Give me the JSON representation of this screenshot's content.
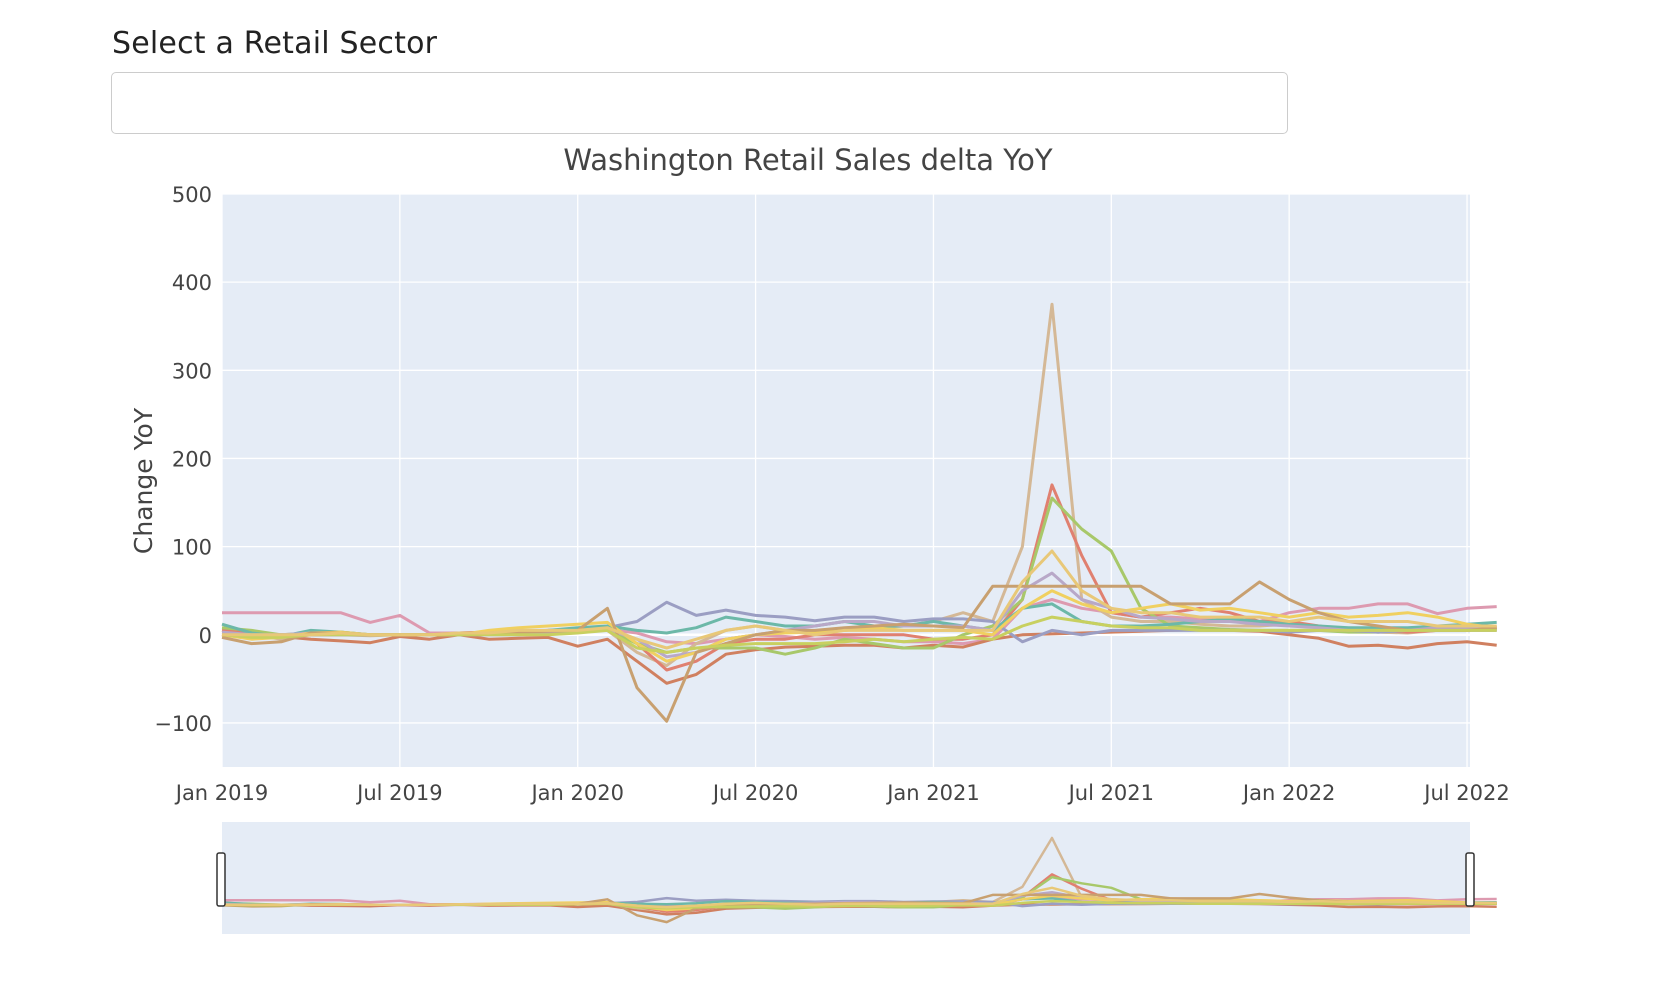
{
  "dropdown": {
    "label": "Select a Retail Sector",
    "value": ""
  },
  "chart_data": {
    "type": "line",
    "title": "Washington Retail Sales delta YoY",
    "ylabel": "Change YoY",
    "xlabel": "",
    "ylim": [
      -150,
      500
    ],
    "xlim": [
      "2019-01",
      "2022-08"
    ],
    "grid": true,
    "range_slider": true,
    "x_ticks": [
      "Jan 2019",
      "Jul 2019",
      "Jan 2020",
      "Jul 2020",
      "Jan 2021",
      "Jul 2021",
      "Jan 2022",
      "Jul 2022"
    ],
    "y_ticks": [
      -100,
      0,
      100,
      200,
      300,
      400,
      500
    ],
    "x": [
      "2019-01",
      "2019-02",
      "2019-03",
      "2019-04",
      "2019-05",
      "2019-06",
      "2019-07",
      "2019-08",
      "2019-09",
      "2019-10",
      "2019-11",
      "2019-12",
      "2020-01",
      "2020-02",
      "2020-03",
      "2020-04",
      "2020-05",
      "2020-06",
      "2020-07",
      "2020-08",
      "2020-09",
      "2020-10",
      "2020-11",
      "2020-12",
      "2021-01",
      "2021-02",
      "2021-03",
      "2021-04",
      "2021-05",
      "2021-06",
      "2021-07",
      "2021-08",
      "2021-09",
      "2021-10",
      "2021-11",
      "2021-12",
      "2022-01",
      "2022-02",
      "2022-03",
      "2022-04",
      "2022-05",
      "2022-06",
      "2022-07",
      "2022-08"
    ],
    "series": [
      {
        "color": "#dd9ab0",
        "values": [
          25,
          25,
          25,
          25,
          25,
          14,
          22,
          2,
          2,
          3,
          4,
          4,
          4,
          6,
          2,
          -8,
          -10,
          -5,
          0,
          -2,
          -5,
          -3,
          -5,
          -8,
          -8,
          -10,
          -5,
          30,
          40,
          30,
          25,
          20,
          20,
          18,
          15,
          15,
          25,
          30,
          30,
          35,
          35,
          24,
          30,
          32
        ]
      },
      {
        "color": "#d08060",
        "values": [
          0,
          -4,
          -2,
          -5,
          -7,
          -9,
          -2,
          -5,
          0,
          -5,
          -4,
          -3,
          -13,
          -5,
          -30,
          -55,
          -45,
          -22,
          -17,
          -14,
          -13,
          -12,
          -12,
          -15,
          -12,
          -14,
          -5,
          0,
          1,
          2,
          3,
          4,
          5,
          6,
          5,
          4,
          0,
          -4,
          -13,
          -12,
          -15,
          -10,
          -8,
          -12
        ]
      },
      {
        "color": "#d4b896",
        "values": [
          5,
          0,
          -5,
          0,
          0,
          -1,
          0,
          0,
          2,
          3,
          4,
          5,
          6,
          5,
          -20,
          -35,
          -10,
          5,
          10,
          5,
          3,
          5,
          8,
          10,
          15,
          25,
          15,
          100,
          375,
          40,
          20,
          15,
          15,
          12,
          10,
          10,
          12,
          10,
          5,
          3,
          2,
          5,
          5,
          8
        ]
      },
      {
        "color": "#e08070",
        "values": [
          5,
          2,
          0,
          0,
          0,
          0,
          0,
          0,
          2,
          3,
          3,
          5,
          6,
          8,
          -10,
          -40,
          -30,
          -10,
          -5,
          -5,
          0,
          0,
          0,
          0,
          -5,
          -5,
          0,
          40,
          170,
          90,
          25,
          20,
          25,
          30,
          25,
          15,
          15,
          10,
          5,
          5,
          3,
          5,
          5,
          8
        ]
      },
      {
        "color": "#a8c86a",
        "values": [
          8,
          5,
          0,
          2,
          3,
          0,
          0,
          0,
          0,
          2,
          3,
          3,
          5,
          5,
          -10,
          -20,
          -15,
          -15,
          -15,
          -22,
          -15,
          -5,
          -10,
          -15,
          -15,
          0,
          10,
          40,
          155,
          120,
          95,
          30,
          10,
          8,
          6,
          5,
          5,
          5,
          3,
          3,
          5,
          5,
          6,
          6
        ]
      },
      {
        "color": "#9b9ec3",
        "values": [
          2,
          0,
          0,
          0,
          0,
          0,
          0,
          0,
          0,
          0,
          0,
          2,
          5,
          8,
          15,
          37,
          22,
          28,
          22,
          20,
          16,
          20,
          20,
          15,
          18,
          18,
          15,
          -8,
          5,
          0,
          5,
          5,
          5,
          5,
          5,
          5,
          3,
          5,
          5,
          3,
          5,
          5,
          5,
          5
        ]
      },
      {
        "color": "#6cb8a8",
        "values": [
          12,
          2,
          -2,
          5,
          3,
          0,
          0,
          0,
          0,
          2,
          3,
          5,
          8,
          10,
          5,
          2,
          8,
          20,
          15,
          10,
          10,
          15,
          10,
          10,
          15,
          10,
          5,
          30,
          35,
          15,
          10,
          10,
          12,
          15,
          18,
          15,
          12,
          10,
          8,
          8,
          8,
          10,
          12,
          14
        ]
      },
      {
        "color": "#b8a8c8",
        "values": [
          3,
          0,
          0,
          2,
          2,
          0,
          0,
          0,
          0,
          2,
          3,
          3,
          5,
          6,
          -5,
          -25,
          -20,
          -5,
          0,
          5,
          10,
          15,
          15,
          10,
          10,
          10,
          5,
          50,
          70,
          40,
          30,
          20,
          18,
          15,
          15,
          12,
          10,
          8,
          5,
          5,
          5,
          8,
          8,
          10
        ]
      },
      {
        "color": "#f0d060",
        "values": [
          0,
          -5,
          -3,
          2,
          3,
          0,
          0,
          0,
          0,
          5,
          8,
          10,
          12,
          14,
          -10,
          -30,
          -20,
          -5,
          0,
          2,
          3,
          5,
          8,
          5,
          5,
          5,
          0,
          30,
          50,
          35,
          25,
          30,
          35,
          28,
          30,
          25,
          20,
          25,
          20,
          22,
          25,
          20,
          12,
          8
        ]
      },
      {
        "color": "#c8a070",
        "values": [
          -3,
          -10,
          -8,
          2,
          2,
          0,
          0,
          0,
          0,
          2,
          3,
          4,
          5,
          30,
          -60,
          -98,
          -20,
          -10,
          0,
          5,
          5,
          8,
          10,
          12,
          10,
          8,
          55,
          55,
          55,
          55,
          55,
          55,
          35,
          35,
          35,
          60,
          40,
          25,
          15,
          10,
          5,
          5,
          5,
          8
        ]
      },
      {
        "color": "#c8d060",
        "values": [
          0,
          -3,
          -3,
          0,
          0,
          0,
          0,
          0,
          0,
          0,
          0,
          0,
          2,
          5,
          -15,
          -20,
          -15,
          -12,
          -10,
          -10,
          -10,
          -8,
          -5,
          -8,
          -5,
          -3,
          -5,
          10,
          20,
          15,
          10,
          8,
          8,
          5,
          5,
          5,
          5,
          5,
          5,
          5,
          5,
          5,
          5,
          5
        ]
      },
      {
        "color": "#e8c878",
        "values": [
          0,
          0,
          0,
          0,
          2,
          0,
          0,
          0,
          2,
          2,
          5,
          5,
          5,
          8,
          -5,
          -15,
          -5,
          5,
          10,
          5,
          0,
          5,
          5,
          5,
          5,
          5,
          5,
          60,
          95,
          50,
          30,
          25,
          25,
          20,
          20,
          20,
          15,
          20,
          15,
          15,
          15,
          10,
          10,
          10
        ]
      }
    ]
  }
}
